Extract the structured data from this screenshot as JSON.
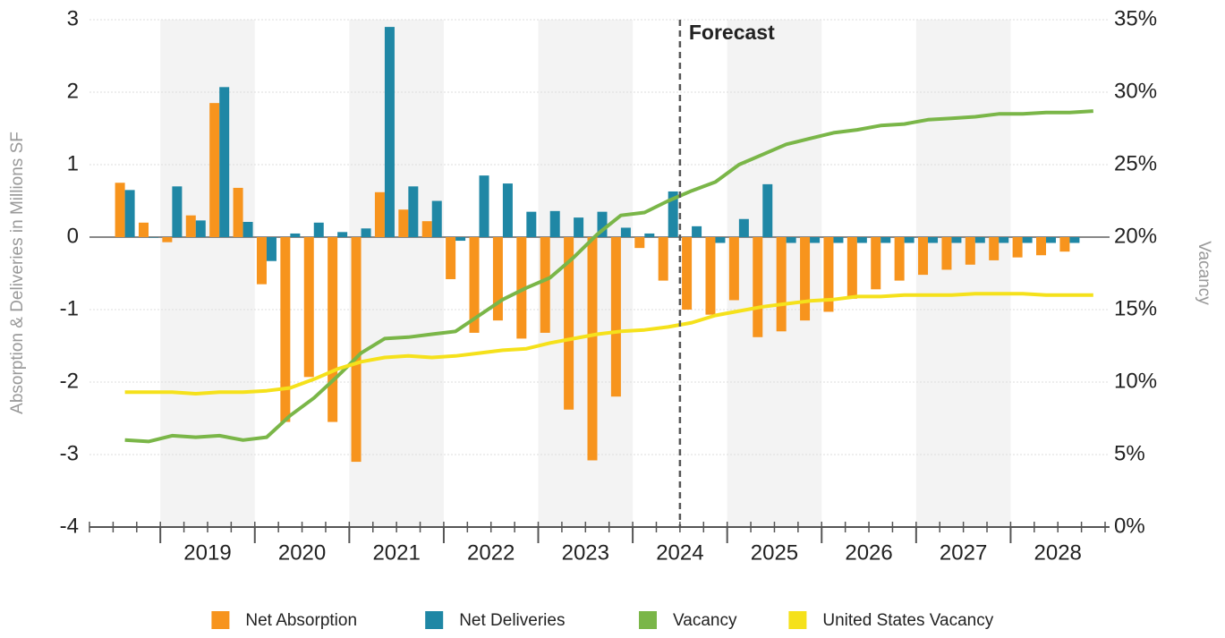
{
  "chart_data": {
    "type": "bar",
    "y_label": "Absorption & Deliveries in Millions SF",
    "y2_label": "Vacancy",
    "annotation": {
      "text": "Forecast",
      "at": "2024"
    },
    "categories": [
      null,
      null,
      null,
      null,
      "2019",
      null,
      null,
      null,
      "2020",
      null,
      null,
      null,
      "2021",
      null,
      null,
      null,
      "2022",
      null,
      null,
      null,
      "2023",
      null,
      null,
      null,
      "2024",
      null,
      null,
      null,
      "2025",
      null,
      null,
      null,
      "2026",
      null,
      null,
      null,
      "2027",
      null,
      null,
      null,
      "2028",
      null,
      null
    ],
    "ylim": [
      -4,
      3
    ],
    "yticks": [
      -4,
      -3,
      -2,
      -1,
      0,
      1,
      2,
      3
    ],
    "y2lim": [
      0,
      35
    ],
    "y2ticks": [
      {
        "value": 0,
        "label": "0%"
      },
      {
        "value": 5,
        "label": "5%"
      },
      {
        "value": 10,
        "label": "10%"
      },
      {
        "value": 15,
        "label": "15%"
      },
      {
        "value": 20,
        "label": "20%"
      },
      {
        "value": 25,
        "label": "25%"
      },
      {
        "value": 30,
        "label": "30%"
      },
      {
        "value": 35,
        "label": "35%"
      }
    ],
    "grid": true,
    "legend": "bottom",
    "series": [
      {
        "name": "Net Absorption",
        "color": "#f7941d",
        "values": [
          null,
          0.75,
          0.2,
          -0.07,
          0.3,
          1.85,
          0.68,
          -0.65,
          -2.55,
          -1.93,
          -2.55,
          -3.1,
          0.62,
          0.38,
          0.22,
          -0.58,
          -1.32,
          -1.15,
          -1.4,
          -1.32,
          -2.38,
          -3.08,
          -2.2,
          -0.15,
          -0.6,
          -1.0,
          -1.07,
          -0.87,
          -1.38,
          -1.3,
          -1.15,
          -1.03,
          -0.85,
          -0.72,
          -0.6,
          -0.52,
          -0.45,
          -0.38,
          -0.32,
          -0.28,
          -0.25,
          -0.2,
          null
        ]
      },
      {
        "name": "Net Deliveries",
        "color": "#1f87a5",
        "values": [
          null,
          0.65,
          0,
          0.7,
          0.23,
          2.07,
          0.21,
          -0.33,
          0.05,
          0.2,
          0.07,
          0.12,
          2.9,
          0.7,
          0.5,
          -0.05,
          0.85,
          0.74,
          0.35,
          0.36,
          0.27,
          0.35,
          0.13,
          0.05,
          0.63,
          0.15,
          -0.08,
          0.25,
          0.73,
          -0.08,
          -0.08,
          -0.08,
          -0.08,
          -0.08,
          -0.08,
          -0.08,
          -0.08,
          -0.08,
          -0.08,
          -0.08,
          -0.08,
          -0.08,
          null
        ]
      },
      {
        "name": "Vacancy",
        "color": "#7ab648",
        "type": "line",
        "axis": "y2",
        "values": [
          null,
          6.0,
          5.9,
          6.3,
          6.2,
          6.3,
          6.0,
          6.2,
          7.7,
          8.9,
          10.4,
          12.0,
          13.0,
          13.1,
          13.3,
          13.5,
          14.6,
          15.7,
          16.5,
          17.2,
          18.6,
          20.2,
          21.5,
          21.7,
          22.5,
          23.2,
          23.8,
          25.0,
          25.7,
          26.4,
          26.8,
          27.2,
          27.4,
          27.7,
          27.8,
          28.1,
          28.2,
          28.3,
          28.5,
          28.5,
          28.6,
          28.6,
          28.7
        ]
      },
      {
        "name": "United States Vacancy",
        "color": "#f5e11b",
        "type": "line",
        "axis": "y2",
        "values": [
          null,
          9.3,
          9.3,
          9.3,
          9.2,
          9.3,
          9.3,
          9.4,
          9.6,
          10.2,
          10.9,
          11.4,
          11.7,
          11.8,
          11.7,
          11.8,
          12.0,
          12.2,
          12.3,
          12.7,
          13.0,
          13.3,
          13.5,
          13.6,
          13.8,
          14.1,
          14.6,
          14.9,
          15.2,
          15.4,
          15.6,
          15.7,
          15.9,
          15.9,
          16.0,
          16.0,
          16.0,
          16.1,
          16.1,
          16.1,
          16.0,
          16.0,
          16.0
        ]
      }
    ]
  }
}
